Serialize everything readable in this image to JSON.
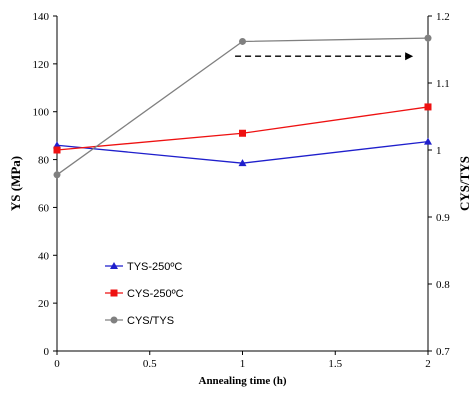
{
  "chart_data": {
    "type": "line",
    "x": [
      0,
      1,
      2
    ],
    "xlabel": "Annealing time (h)",
    "ylabel": "YS (MPa)",
    "y2label": "CYS/TYS",
    "xlim": [
      0,
      2
    ],
    "ylim": [
      0,
      140
    ],
    "y2lim": [
      0.7,
      1.2
    ],
    "x_ticks": [
      "0",
      "0.5",
      "1",
      "1.5",
      "2"
    ],
    "y_ticks": [
      "0",
      "20",
      "40",
      "60",
      "80",
      "100",
      "120",
      "140"
    ],
    "y2_ticks": [
      "0.7",
      "0.8",
      "0.9",
      "1",
      "1.1",
      "1.2"
    ],
    "grid": false,
    "legend_position": "bottom-left",
    "series": [
      {
        "name": "TYS-250ºC",
        "axis": "left",
        "values": [
          86,
          78.5,
          87.5
        ],
        "color": "#1f1fcc",
        "marker": "triangle"
      },
      {
        "name": "CYS-250ºC",
        "axis": "left",
        "values": [
          84,
          91,
          102
        ],
        "color": "#ee1111",
        "marker": "square"
      },
      {
        "name": "CYS/TYS",
        "axis": "right",
        "values": [
          0.963,
          1.162,
          1.167
        ],
        "color": "#808080",
        "marker": "circle"
      }
    ],
    "annotations": [
      {
        "type": "dashed-arrow",
        "from_x": 0.96,
        "to_x": 1.92,
        "y2": 1.14,
        "direction": "right",
        "color": "#000000"
      }
    ]
  }
}
